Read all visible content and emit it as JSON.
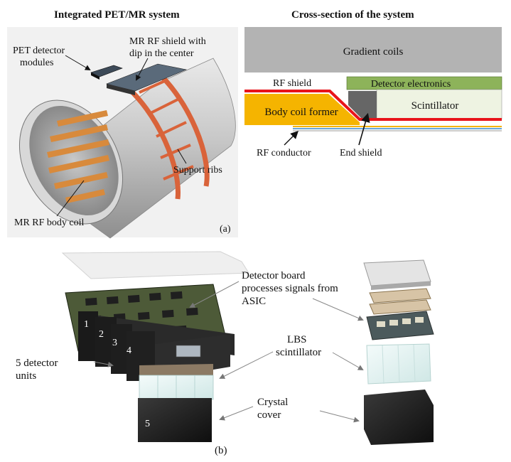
{
  "panel_a": {
    "title_left": "Integrated PET/MR system",
    "title_right": "Cross-section  of the system",
    "labels": {
      "pet_modules_line1": "PET detector",
      "pet_modules_line2": "modules",
      "rf_shield_line1": "MR RF shield with",
      "rf_shield_line2": "dip in the center",
      "support_ribs": "Support ribs",
      "body_coil": "MR RF body coil",
      "panel_tag": "(a)"
    },
    "cross_section": {
      "gradient_coils": "Gradient coils",
      "rf_shield": "RF shield",
      "detector_electronics": "Detector electronics",
      "body_coil_former": "Body coil former",
      "scintillator": "Scintillator",
      "rf_conductor": "RF conductor",
      "end_shield": "End shield"
    }
  },
  "panel_b": {
    "detector_board_line1": "Detector board",
    "detector_board_line2": "processes signals from",
    "detector_board_line3": "ASIC",
    "lbs_line1": "LBS",
    "lbs_line2": "scintillator",
    "units_line1": "5 detector",
    "units_line2": "units",
    "crystal_line1": "Crystal",
    "crystal_line2": "cover",
    "unit_numbers": [
      "1",
      "2",
      "3",
      "4",
      "5"
    ],
    "panel_tag": "(b)"
  },
  "colors": {
    "gradient": "#b3b3b3",
    "detector_electronics": "#8db35a",
    "body_coil_former": "#f5b400",
    "scintillator": "#eef3e2",
    "rf_shield": "#e8141b",
    "end_shield": "#666666",
    "conductor": "#6aa6d9",
    "rib_orange": "#e07a4a"
  }
}
